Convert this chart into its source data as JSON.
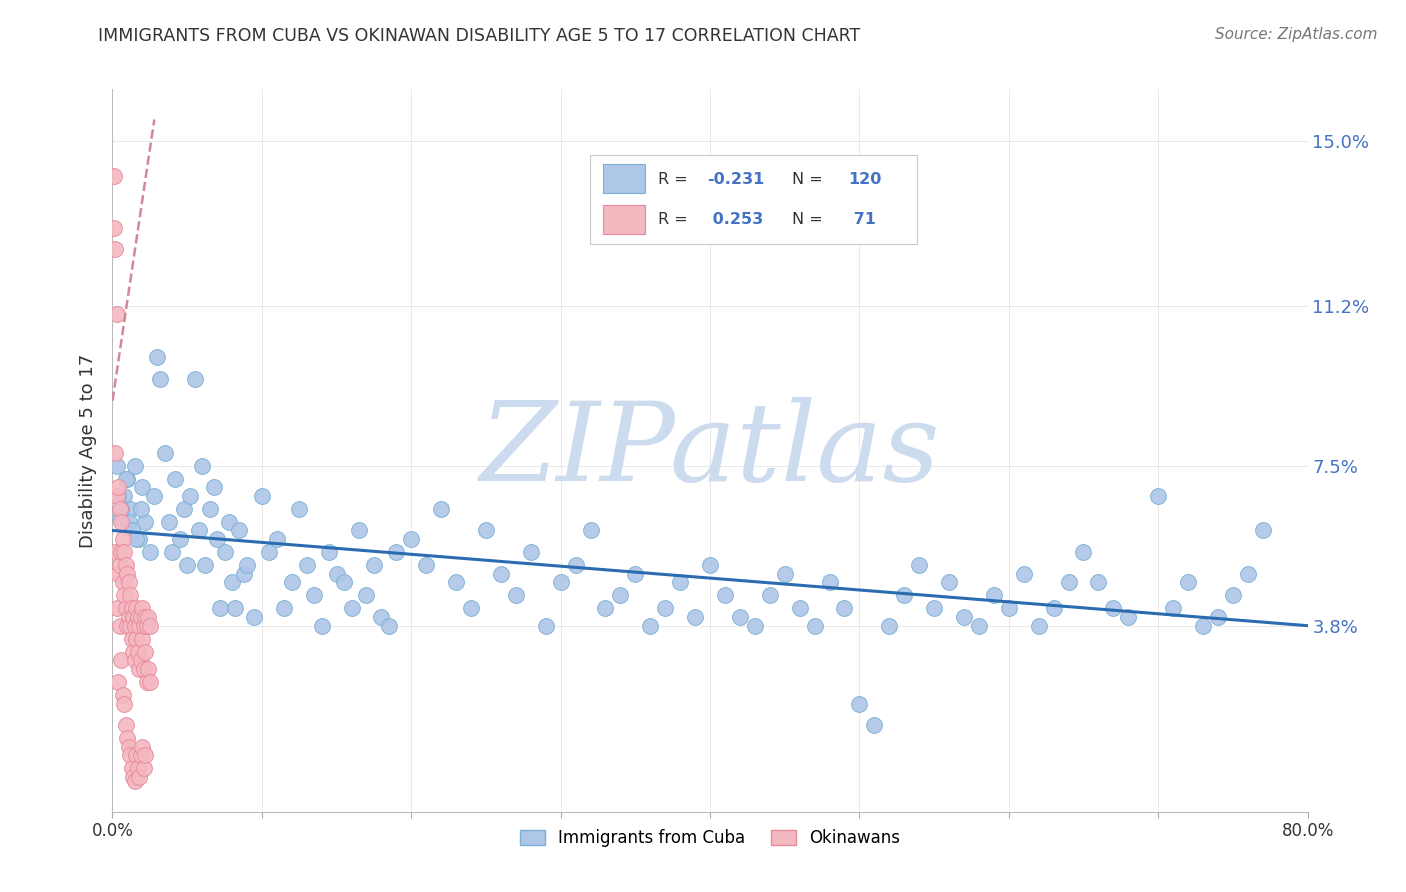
{
  "title": "IMMIGRANTS FROM CUBA VS OKINAWAN DISABILITY AGE 5 TO 17 CORRELATION CHART",
  "source": "Source: ZipAtlas.com",
  "ylabel": "Disability Age 5 to 17",
  "ytick_labels": [
    "3.8%",
    "7.5%",
    "11.2%",
    "15.0%"
  ],
  "ytick_values": [
    0.038,
    0.075,
    0.112,
    0.15
  ],
  "xlim": [
    0.0,
    0.8
  ],
  "ylim": [
    -0.005,
    0.162
  ],
  "scatter_cuba_color": "#aec6e8",
  "scatter_cuba_edge": "#7bafd4",
  "scatter_okinawan_color": "#f4b8c1",
  "scatter_okinawan_edge": "#e8899a",
  "trend_cuba_color": "#2b6cb0",
  "trend_okinawan_color": "#d4879a",
  "watermark": "ZIPatlas",
  "watermark_color": "#ccdcee",
  "background_color": "#ffffff",
  "grid_color": "#e0e0e0",
  "legend_r_color": "#333333",
  "legend_val_color": "#4472c4",
  "right_tick_color": "#4472c4",
  "scatter_cuba_x": [
    0.005,
    0.008,
    0.01,
    0.012,
    0.015,
    0.018,
    0.02,
    0.022,
    0.025,
    0.028,
    0.03,
    0.032,
    0.035,
    0.038,
    0.04,
    0.042,
    0.045,
    0.048,
    0.05,
    0.052,
    0.055,
    0.058,
    0.06,
    0.062,
    0.065,
    0.068,
    0.07,
    0.072,
    0.075,
    0.078,
    0.08,
    0.082,
    0.085,
    0.088,
    0.09,
    0.095,
    0.1,
    0.105,
    0.11,
    0.115,
    0.12,
    0.125,
    0.13,
    0.135,
    0.14,
    0.145,
    0.15,
    0.155,
    0.16,
    0.165,
    0.17,
    0.175,
    0.18,
    0.185,
    0.19,
    0.2,
    0.21,
    0.22,
    0.23,
    0.24,
    0.25,
    0.26,
    0.27,
    0.28,
    0.29,
    0.3,
    0.31,
    0.32,
    0.33,
    0.34,
    0.35,
    0.36,
    0.37,
    0.38,
    0.39,
    0.4,
    0.41,
    0.42,
    0.43,
    0.44,
    0.45,
    0.46,
    0.47,
    0.48,
    0.49,
    0.5,
    0.51,
    0.52,
    0.53,
    0.54,
    0.55,
    0.56,
    0.57,
    0.58,
    0.59,
    0.6,
    0.61,
    0.62,
    0.63,
    0.64,
    0.65,
    0.66,
    0.67,
    0.68,
    0.7,
    0.71,
    0.72,
    0.73,
    0.74,
    0.75,
    0.76,
    0.77,
    0.003,
    0.004,
    0.006,
    0.009,
    0.011,
    0.013,
    0.016,
    0.019
  ],
  "scatter_cuba_y": [
    0.063,
    0.068,
    0.072,
    0.065,
    0.075,
    0.058,
    0.07,
    0.062,
    0.055,
    0.068,
    0.1,
    0.095,
    0.078,
    0.062,
    0.055,
    0.072,
    0.058,
    0.065,
    0.052,
    0.068,
    0.095,
    0.06,
    0.075,
    0.052,
    0.065,
    0.07,
    0.058,
    0.042,
    0.055,
    0.062,
    0.048,
    0.042,
    0.06,
    0.05,
    0.052,
    0.04,
    0.068,
    0.055,
    0.058,
    0.042,
    0.048,
    0.065,
    0.052,
    0.045,
    0.038,
    0.055,
    0.05,
    0.048,
    0.042,
    0.06,
    0.045,
    0.052,
    0.04,
    0.038,
    0.055,
    0.058,
    0.052,
    0.065,
    0.048,
    0.042,
    0.06,
    0.05,
    0.045,
    0.055,
    0.038,
    0.048,
    0.052,
    0.06,
    0.042,
    0.045,
    0.05,
    0.038,
    0.042,
    0.048,
    0.04,
    0.052,
    0.045,
    0.04,
    0.038,
    0.045,
    0.05,
    0.042,
    0.038,
    0.048,
    0.042,
    0.02,
    0.015,
    0.038,
    0.045,
    0.052,
    0.042,
    0.048,
    0.04,
    0.038,
    0.045,
    0.042,
    0.05,
    0.038,
    0.042,
    0.048,
    0.055,
    0.048,
    0.042,
    0.04,
    0.068,
    0.042,
    0.048,
    0.038,
    0.04,
    0.045,
    0.05,
    0.06,
    0.075,
    0.068,
    0.065,
    0.072,
    0.062,
    0.06,
    0.058,
    0.065
  ],
  "scatter_okinawan_x": [
    0.001,
    0.001,
    0.002,
    0.002,
    0.002,
    0.003,
    0.003,
    0.003,
    0.004,
    0.004,
    0.004,
    0.005,
    0.005,
    0.005,
    0.006,
    0.006,
    0.006,
    0.007,
    0.007,
    0.007,
    0.008,
    0.008,
    0.008,
    0.009,
    0.009,
    0.009,
    0.01,
    0.01,
    0.01,
    0.011,
    0.011,
    0.011,
    0.012,
    0.012,
    0.012,
    0.013,
    0.013,
    0.013,
    0.014,
    0.014,
    0.014,
    0.015,
    0.015,
    0.015,
    0.016,
    0.016,
    0.016,
    0.017,
    0.017,
    0.017,
    0.018,
    0.018,
    0.018,
    0.019,
    0.019,
    0.019,
    0.02,
    0.02,
    0.02,
    0.021,
    0.021,
    0.021,
    0.022,
    0.022,
    0.022,
    0.023,
    0.023,
    0.024,
    0.024,
    0.025,
    0.025
  ],
  "scatter_okinawan_y": [
    0.142,
    0.13,
    0.125,
    0.078,
    0.055,
    0.11,
    0.068,
    0.042,
    0.07,
    0.05,
    0.025,
    0.065,
    0.052,
    0.038,
    0.062,
    0.055,
    0.03,
    0.058,
    0.048,
    0.022,
    0.055,
    0.045,
    0.02,
    0.052,
    0.042,
    0.015,
    0.05,
    0.038,
    0.012,
    0.048,
    0.04,
    0.01,
    0.045,
    0.038,
    0.008,
    0.042,
    0.035,
    0.005,
    0.04,
    0.032,
    0.003,
    0.038,
    0.03,
    0.002,
    0.042,
    0.035,
    0.008,
    0.04,
    0.032,
    0.005,
    0.038,
    0.028,
    0.003,
    0.04,
    0.03,
    0.008,
    0.042,
    0.035,
    0.01,
    0.038,
    0.028,
    0.005,
    0.04,
    0.032,
    0.008,
    0.038,
    0.025,
    0.04,
    0.028,
    0.038,
    0.025
  ],
  "trend_cuba_x0": 0.0,
  "trend_cuba_x1": 0.8,
  "trend_cuba_y0": 0.06,
  "trend_cuba_y1": 0.038,
  "trend_oki_x0": 0.0,
  "trend_oki_x1": 0.028,
  "trend_oki_y0": 0.09,
  "trend_oki_y1": 0.155
}
